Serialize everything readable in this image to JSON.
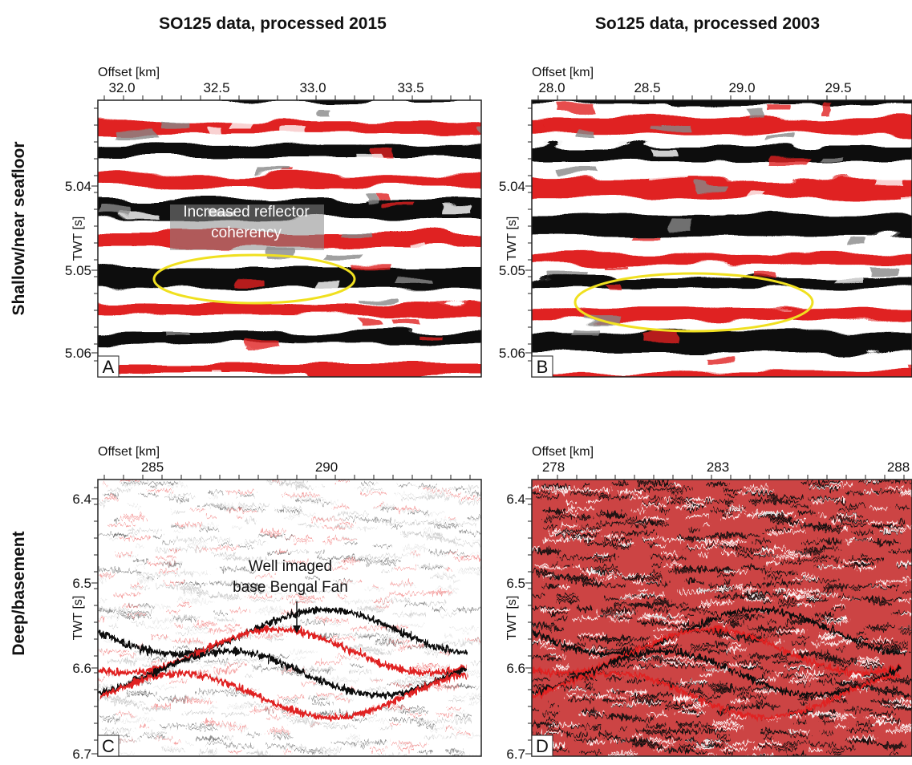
{
  "column_titles": [
    "SO125 data, processed 2015",
    "So125 data, processed 2003"
  ],
  "row_labels": [
    "Shallow/near seafloor",
    "Deep/basement"
  ],
  "panels": [
    {
      "letter": "A",
      "x_axis_label": "Offset [km]",
      "y_axis_label": "TWT  [s]",
      "xticks": [
        "32.0",
        "32.5",
        "33.0",
        "33.5"
      ],
      "yticks": [
        "5.04",
        "5.05",
        "5.06"
      ],
      "annotation": [
        "Increased reflector",
        "coherency"
      ]
    },
    {
      "letter": "B",
      "x_axis_label": "Offset [km]",
      "y_axis_label": "TWT  [s]",
      "xticks": [
        "28.0",
        "28.5",
        "29.0",
        "29.5"
      ],
      "yticks": [
        "5.04",
        "5.05",
        "5.06"
      ]
    },
    {
      "letter": "C",
      "x_axis_label": "Offset [km]",
      "y_axis_label": "TWT  [s]",
      "xticks": [
        "285",
        "290"
      ],
      "yticks": [
        "6.4",
        "6.5",
        "6.6",
        "6.7"
      ],
      "annotation": [
        "Well imaged",
        "base Bengal Fan"
      ]
    },
    {
      "letter": "D",
      "x_axis_label": "Offset [km]",
      "y_axis_label": "TWT  [s]",
      "xticks": [
        "278",
        "283",
        "288"
      ],
      "yticks": [
        "6.4",
        "6.5",
        "6.6",
        "6.7"
      ]
    }
  ]
}
